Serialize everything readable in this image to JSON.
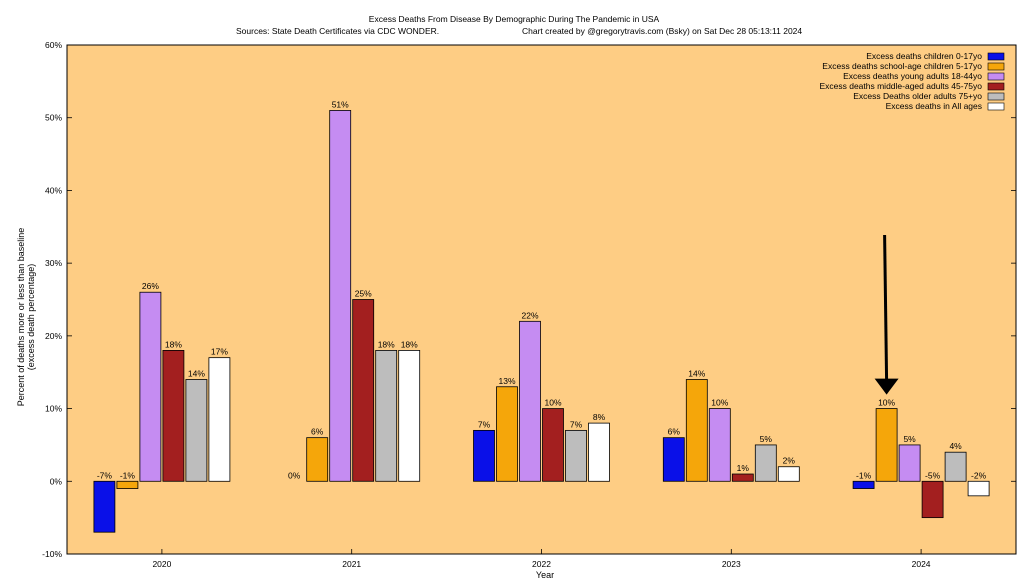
{
  "chart_data": {
    "type": "bar",
    "title": "Excess Deaths From Disease By Demographic During The Pandemic in USA",
    "subtitle_left": "Sources: State Death Certificates via CDC WONDER.",
    "subtitle_right": "Chart created by @gregorytravis.com (Bsky) on Sat Dec 28 05:13:11 2024",
    "xlabel": "Year",
    "ylabel_line1": "Percent of deaths more or less than baseline",
    "ylabel_line2": "(excess death percentage)",
    "ylim": [
      -10,
      60
    ],
    "yticks": [
      "-10%",
      "0%",
      "10%",
      "20%",
      "30%",
      "40%",
      "50%",
      "60%"
    ],
    "categories": [
      "2020",
      "2021",
      "2022",
      "2023",
      "2024"
    ],
    "legend_position": "top-right",
    "series": [
      {
        "name": "Excess deaths children 0-17yo",
        "color": "#0a10e8",
        "values": [
          -7,
          0,
          7,
          6,
          -1
        ],
        "labels": [
          "-7%",
          "0%",
          "7%",
          "6%",
          "-1%"
        ]
      },
      {
        "name": "Excess deaths school-age children 5-17yo",
        "color": "#f5a60a",
        "values": [
          -1,
          6,
          13,
          14,
          10
        ],
        "labels": [
          "-1%",
          "6%",
          "13%",
          "14%",
          "10%"
        ]
      },
      {
        "name": "Excess deaths young adults 18-44yo",
        "color": "#c58cf2",
        "values": [
          26,
          51,
          22,
          10,
          5
        ],
        "labels": [
          "26%",
          "51%",
          "22%",
          "10%",
          "5%"
        ]
      },
      {
        "name": "Excess deaths middle-aged adults 45-75yo",
        "color": "#a31f1f",
        "values": [
          18,
          25,
          10,
          1,
          -5
        ],
        "labels": [
          "18%",
          "25%",
          "10%",
          "1%",
          "-5%"
        ]
      },
      {
        "name": "Excess Deaths older adults 75+yo",
        "color": "#bdbdbd",
        "values": [
          14,
          18,
          7,
          5,
          4
        ],
        "labels": [
          "14%",
          "18%",
          "7%",
          "5%",
          "4%"
        ]
      },
      {
        "name": "Excess deaths in All ages",
        "color": "#ffffff",
        "values": [
          17,
          18,
          8,
          2,
          -2
        ],
        "labels": [
          "17%",
          "18%",
          "8%",
          "2%",
          "-2%"
        ]
      }
    ],
    "annotation": {
      "type": "arrow",
      "points_to_category": "2024",
      "points_to_series": 1,
      "color": "#000000"
    }
  },
  "colors": {
    "plot_background": "#fecd84",
    "page_background": "#ffffff"
  }
}
